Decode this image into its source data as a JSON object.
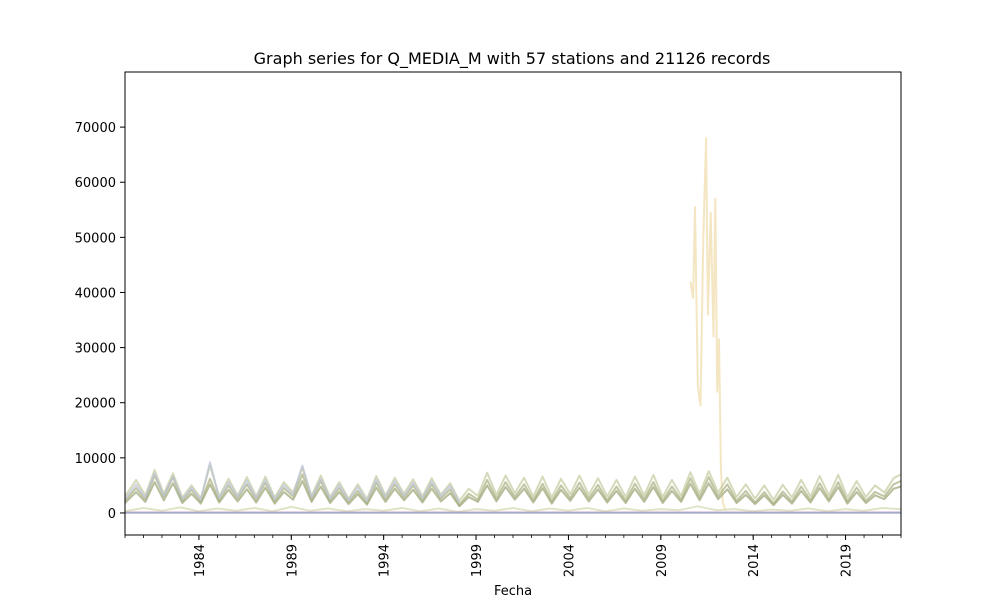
{
  "chart_data": {
    "type": "line",
    "title": "Graph series for Q_MEDIA_M with 57 stations and 21126 records",
    "xlabel": "Fecha",
    "ylabel": "",
    "xlim": [
      1980.0,
      2022.0
    ],
    "ylim": [
      -4000,
      80000
    ],
    "x_ticks": [
      1984,
      1989,
      1994,
      1999,
      2004,
      2009,
      2014,
      2019
    ],
    "y_ticks": [
      0,
      10000,
      20000,
      30000,
      40000,
      50000,
      60000,
      70000
    ],
    "grid": false,
    "legend": "none",
    "series": [
      {
        "color": "#f0dca8",
        "x": [
          2010.6,
          2010.75,
          2010.85,
          2011.0,
          2011.15,
          2011.3,
          2011.45,
          2011.55,
          2011.7,
          2011.85,
          2011.95,
          2012.05,
          2012.15,
          2012.25,
          2012.35,
          2012.5
        ],
        "y": [
          42000,
          39000,
          55500,
          23000,
          19500,
          50000,
          68000,
          36000,
          54500,
          32000,
          57000,
          22000,
          31500,
          8000,
          2000,
          500
        ]
      },
      {
        "color": "#a7ad7c",
        "x": [
          1980.0,
          1980.6,
          1981.1,
          1981.6,
          1982.1,
          1982.6,
          1983.1,
          1983.6,
          1984.1,
          1984.6,
          1985.1,
          1985.6,
          1986.1,
          1986.6,
          1987.1,
          1987.6,
          1988.1,
          1988.6,
          1989.1,
          1989.6,
          1990.1,
          1990.6,
          1991.1,
          1991.6,
          1992.1,
          1992.6,
          1993.1,
          1993.6,
          1994.1,
          1994.6,
          1995.1,
          1995.6,
          1996.1,
          1996.6,
          1997.1,
          1997.6,
          1998.1,
          1998.6,
          1999.1,
          1999.6,
          2000.1,
          2000.6,
          2001.1,
          2001.6,
          2002.1,
          2002.6,
          2003.1,
          2003.6,
          2004.1,
          2004.6,
          2005.1,
          2005.6,
          2006.1,
          2006.6,
          2007.1,
          2007.6,
          2008.1,
          2008.6,
          2009.1,
          2009.6,
          2010.1,
          2010.6,
          2011.1,
          2011.6,
          2012.1,
          2012.6,
          2013.1,
          2013.6,
          2014.1,
          2014.6,
          2015.1,
          2015.6,
          2016.1,
          2016.6,
          2017.1,
          2017.6,
          2018.1,
          2018.6,
          2019.1,
          2019.6,
          2020.1,
          2020.6,
          2021.1,
          2021.6,
          2022.0
        ],
        "y": [
          2200,
          4500,
          2500,
          6800,
          3000,
          6500,
          2200,
          4200,
          2000,
          6200,
          2300,
          5000,
          2600,
          5200,
          2400,
          5500,
          2100,
          4500,
          3000,
          7000,
          2400,
          5800,
          2200,
          4500,
          2000,
          4000,
          1800,
          5500,
          2500,
          5200,
          2800,
          5000,
          2300,
          5200,
          2600,
          4300,
          1500,
          3500,
          2400,
          6000,
          2600,
          5600,
          2900,
          5200,
          2300,
          5300,
          2100,
          5000,
          2700,
          5500,
          2600,
          5100,
          2300,
          4800,
          2200,
          5300,
          2500,
          5600,
          2200,
          4800,
          2400,
          6300,
          2800,
          6500,
          3000,
          5200,
          2200,
          4000,
          1900,
          3800,
          1700,
          3900,
          2100,
          4800,
          2300,
          5400,
          2500,
          5600,
          2100,
          4600,
          2200,
          3800,
          3000,
          5200,
          5800
        ]
      },
      {
        "color": "#c4ca9c",
        "x": [
          1980.0,
          1980.6,
          1981.1,
          1981.6,
          1982.1,
          1982.6,
          1983.1,
          1983.6,
          1984.1,
          1984.6,
          1985.1,
          1985.6,
          1986.1,
          1986.6,
          1987.1,
          1987.6,
          1988.1,
          1988.6,
          1989.1,
          1989.6,
          1990.1,
          1990.6,
          1991.1,
          1991.6,
          1992.1,
          1992.6,
          1993.1,
          1993.6,
          1994.1,
          1994.6,
          1995.1,
          1995.6,
          1996.1,
          1996.6,
          1997.1,
          1997.6,
          1998.1,
          1998.6,
          1999.1,
          1999.6,
          2000.1,
          2000.6,
          2001.1,
          2001.6,
          2002.1,
          2002.6,
          2003.1,
          2003.6,
          2004.1,
          2004.6,
          2005.1,
          2005.6,
          2006.1,
          2006.6,
          2007.1,
          2007.6,
          2008.1,
          2008.6,
          2009.1,
          2009.6,
          2010.1,
          2010.6,
          2011.1,
          2011.6,
          2012.1,
          2012.6,
          2013.1,
          2013.6,
          2014.1,
          2014.6,
          2015.1,
          2015.6,
          2016.1,
          2016.6,
          2017.1,
          2017.6,
          2018.1,
          2018.6,
          2019.1,
          2019.6,
          2020.1,
          2020.6,
          2021.1,
          2021.6,
          2022.0
        ],
        "y": [
          3000,
          6000,
          3200,
          7800,
          3500,
          7200,
          2800,
          5000,
          2700,
          8600,
          3000,
          6200,
          3200,
          6500,
          3000,
          6600,
          2800,
          5600,
          3700,
          8200,
          3100,
          6800,
          2900,
          5600,
          2600,
          5200,
          2500,
          6700,
          3200,
          6400,
          3500,
          6100,
          3000,
          6300,
          3300,
          5400,
          2200,
          4400,
          3100,
          7300,
          3300,
          6800,
          3600,
          6400,
          3000,
          6600,
          2800,
          6200,
          3400,
          6800,
          3300,
          6300,
          3000,
          6000,
          2900,
          6600,
          3200,
          6900,
          2900,
          6000,
          3100,
          7400,
          3500,
          7600,
          3700,
          6400,
          2900,
          5200,
          2600,
          5000,
          2400,
          5100,
          2800,
          6000,
          3000,
          6700,
          3200,
          6900,
          2800,
          5800,
          2900,
          5000,
          3700,
          6300,
          7000
        ]
      },
      {
        "color": "#b9c2d4",
        "x": [
          1980.0,
          1980.6,
          1981.1,
          1981.6,
          1982.1,
          1982.6,
          1983.1,
          1983.6,
          1984.1,
          1984.6,
          1985.1,
          1985.6,
          1986.1,
          1986.6,
          1987.1,
          1987.6,
          1988.1,
          1988.6,
          1989.1,
          1989.6,
          1990.1,
          1990.6,
          1991.1,
          1991.6,
          1992.1,
          1992.6,
          1993.1,
          1993.6,
          1994.1,
          1994.6,
          1995.1,
          1995.6,
          1996.1,
          1996.6,
          1997.1,
          1997.6,
          1998.1
        ],
        "y": [
          2500,
          5200,
          2800,
          7200,
          3100,
          6600,
          2500,
          4600,
          2400,
          9200,
          2700,
          5600,
          2900,
          5900,
          2700,
          6000,
          2500,
          5100,
          3300,
          8600,
          2800,
          6200,
          2600,
          5100,
          2300,
          4700,
          2200,
          6100,
          2900,
          5800,
          3100,
          5500,
          2700,
          5700,
          3000,
          4900,
          1900
        ]
      },
      {
        "color": "#99a271",
        "x": [
          1980.0,
          1980.6,
          1981.1,
          1981.6,
          1982.1,
          1982.6,
          1983.1,
          1983.6,
          1984.1,
          1984.6,
          1985.1,
          1985.6,
          1986.1,
          1986.6,
          1987.1,
          1987.6,
          1988.1,
          1988.6,
          1989.1,
          1989.6,
          1990.1,
          1990.6,
          1991.1,
          1991.6,
          1992.1,
          1992.6,
          1993.1,
          1993.6,
          1994.1,
          1994.6,
          1995.1,
          1995.6,
          1996.1,
          1996.6,
          1997.1,
          1997.6,
          1998.1,
          1998.6,
          1999.1,
          1999.6,
          2000.1,
          2000.6,
          2001.1,
          2001.6,
          2002.1,
          2002.6,
          2003.1,
          2003.6,
          2004.1,
          2004.6,
          2005.1,
          2005.6,
          2006.1,
          2006.6,
          2007.1,
          2007.6,
          2008.1,
          2008.6,
          2009.1,
          2009.6,
          2010.1,
          2010.6,
          2011.1,
          2011.6,
          2012.1,
          2012.6,
          2013.1,
          2013.6,
          2014.1,
          2014.6,
          2015.1,
          2015.6,
          2016.1,
          2016.6,
          2017.1,
          2017.6,
          2018.1,
          2018.6,
          2019.1,
          2019.6,
          2020.1,
          2020.6,
          2021.1,
          2021.6,
          2022.0
        ],
        "y": [
          1800,
          3800,
          2000,
          5600,
          2300,
          5400,
          1800,
          3500,
          1700,
          5200,
          1900,
          4200,
          2100,
          4300,
          1900,
          4600,
          1700,
          3800,
          2400,
          5800,
          2000,
          4800,
          1800,
          3800,
          1600,
          3400,
          1500,
          4600,
          2000,
          4400,
          2300,
          4200,
          1900,
          4400,
          2100,
          3600,
          1200,
          2900,
          2000,
          5000,
          2100,
          4700,
          2400,
          4400,
          1900,
          4500,
          1700,
          4200,
          2200,
          4600,
          2100,
          4300,
          1900,
          4000,
          1800,
          4400,
          2000,
          4700,
          1800,
          4000,
          2000,
          5300,
          2300,
          5400,
          2500,
          4300,
          1800,
          3300,
          1600,
          3200,
          1400,
          3300,
          1700,
          4000,
          1900,
          4500,
          2100,
          4700,
          1700,
          3800,
          1800,
          3200,
          2500,
          4400,
          4800
        ]
      },
      {
        "color": "#d3d9ae",
        "x": [
          1980.0,
          1981.0,
          1982.0,
          1983.0,
          1984.0,
          1985.0,
          1986.0,
          1987.0,
          1988.0,
          1989.0,
          1990.0,
          1991.0,
          1992.0,
          1993.0,
          1994.0,
          1995.0,
          1996.0,
          1997.0,
          1998.0,
          1999.0,
          2000.0,
          2001.0,
          2002.0,
          2003.0,
          2004.0,
          2005.0,
          2006.0,
          2007.0,
          2008.0,
          2009.0,
          2010.0,
          2011.0,
          2012.0,
          2013.0,
          2014.0,
          2015.0,
          2016.0,
          2017.0,
          2018.0,
          2019.0,
          2020.0,
          2021.0,
          2022.0
        ],
        "y": [
          300,
          900,
          400,
          1000,
          300,
          800,
          400,
          900,
          300,
          1100,
          400,
          800,
          300,
          700,
          400,
          900,
          300,
          800,
          200,
          700,
          400,
          900,
          300,
          800,
          400,
          900,
          300,
          800,
          400,
          700,
          500,
          1200,
          500,
          700,
          300,
          600,
          400,
          800,
          300,
          700,
          400,
          900,
          700
        ]
      },
      {
        "color": "#d98bc0",
        "x": [
          1980.0,
          2022.0
        ],
        "y": [
          80,
          80
        ]
      },
      {
        "color": "#8fa8c8",
        "x": [
          1980.0,
          2022.0
        ],
        "y": [
          30,
          30
        ]
      }
    ]
  }
}
